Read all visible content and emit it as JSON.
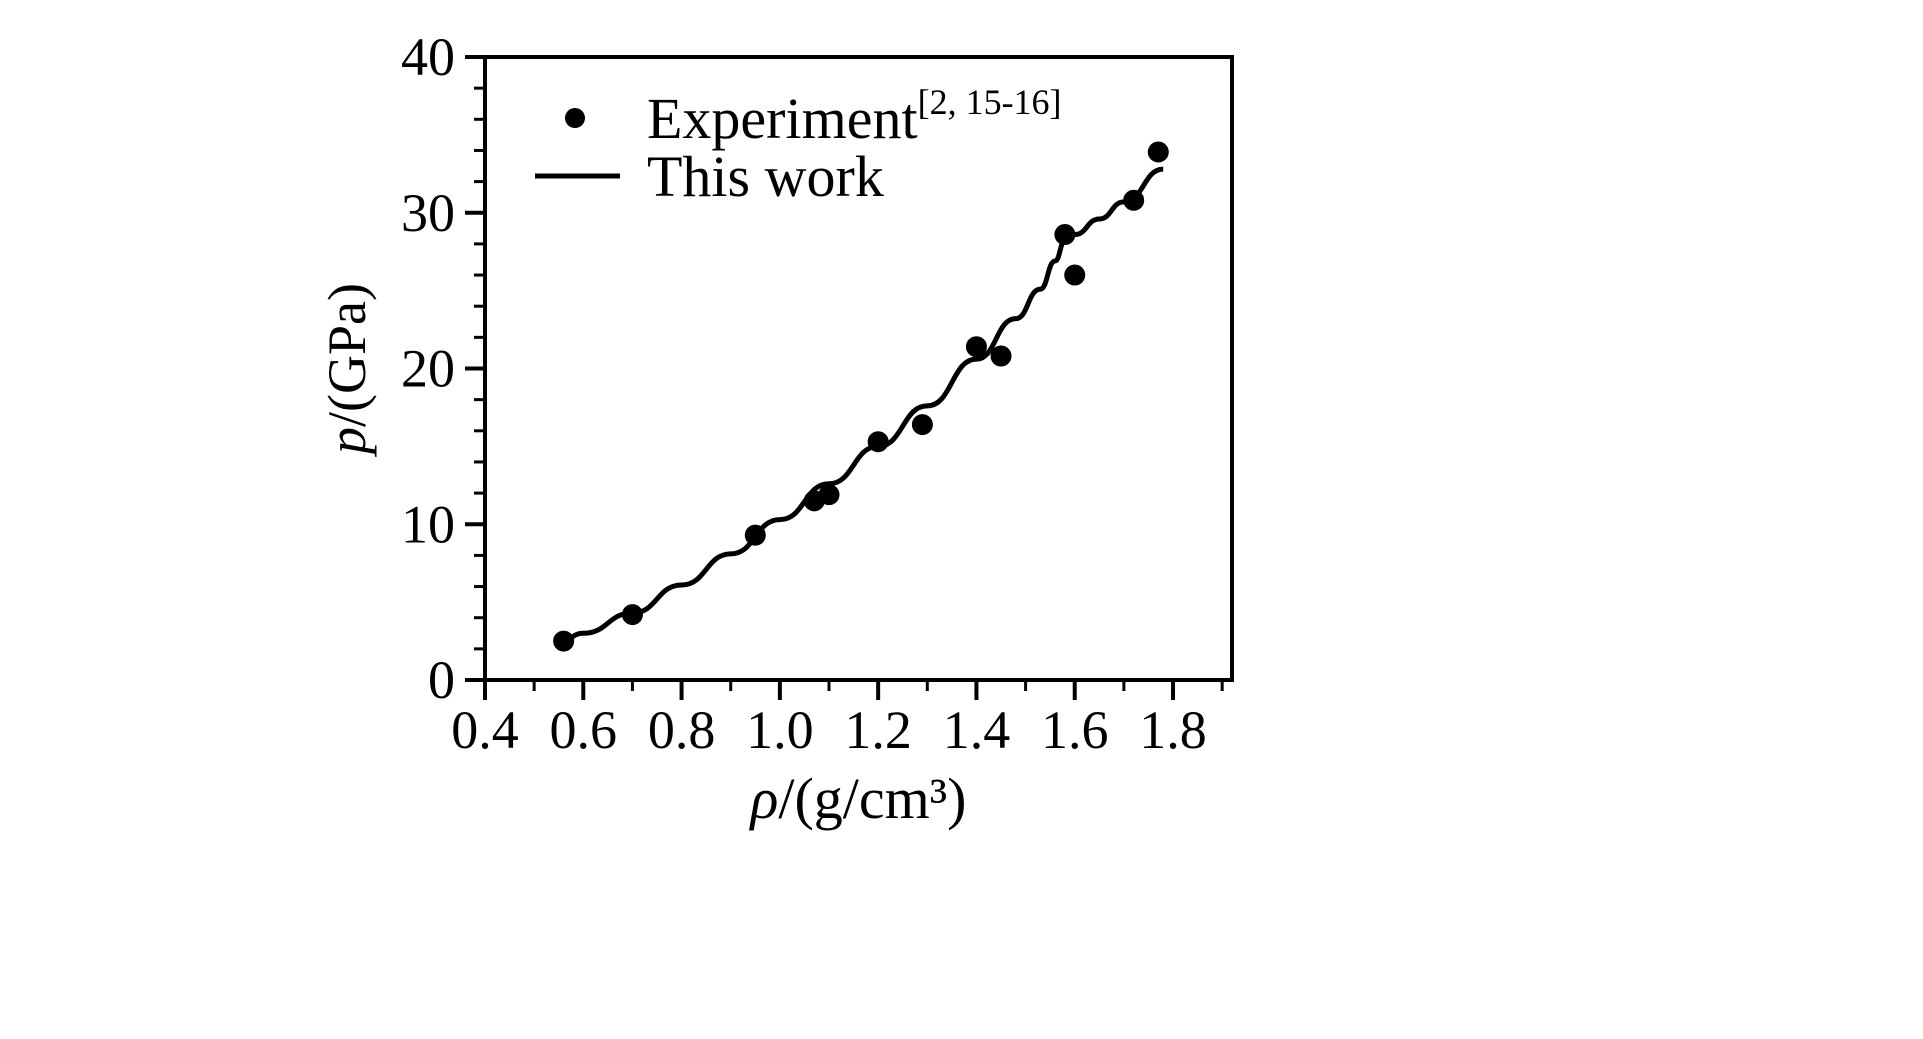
{
  "figure": {
    "background": "#ffffff",
    "foreground": "#000000"
  },
  "chart_data": {
    "type": "scatter",
    "title": "",
    "xlabel_symbol": "ρ",
    "xlabel_rest": "/(g/cm³)",
    "ylabel_symbol": "p",
    "ylabel_rest": "/(GPa)",
    "xlim": [
      0.4,
      1.92
    ],
    "ylim": [
      0,
      40
    ],
    "x_major_ticks": [
      0.4,
      0.6,
      0.8,
      1.0,
      1.2,
      1.4,
      1.6,
      1.8
    ],
    "x_tick_labels": [
      "0.4",
      "0.6",
      "0.8",
      "1.0",
      "1.2",
      "1.4",
      "1.6",
      "1.8"
    ],
    "x_minor_step": 0.1,
    "y_major_ticks": [
      0,
      10,
      20,
      30,
      40
    ],
    "y_tick_labels": [
      "0",
      "10",
      "20",
      "30",
      "40"
    ],
    "y_minor_step": 2,
    "grid": false,
    "legend_position": "upper-left-inside",
    "series": [
      {
        "name": "experiment",
        "label": "Experiment",
        "label_superscript": "[2, 15-16]",
        "type": "scatter",
        "marker": "filled-circle",
        "color": "#000000",
        "points": [
          [
            0.56,
            2.5
          ],
          [
            0.7,
            4.2
          ],
          [
            0.95,
            9.3
          ],
          [
            1.07,
            11.5
          ],
          [
            1.1,
            11.9
          ],
          [
            1.2,
            15.3
          ],
          [
            1.29,
            16.4
          ],
          [
            1.4,
            21.4
          ],
          [
            1.45,
            20.8
          ],
          [
            1.58,
            28.6
          ],
          [
            1.6,
            26.0
          ],
          [
            1.72,
            30.8
          ],
          [
            1.77,
            33.9
          ]
        ]
      },
      {
        "name": "this-work",
        "label": "This work",
        "label_superscript": "",
        "type": "line",
        "color": "#000000",
        "points": [
          [
            0.55,
            2.4
          ],
          [
            0.6,
            3.0
          ],
          [
            0.7,
            4.3
          ],
          [
            0.8,
            6.1
          ],
          [
            0.9,
            8.1
          ],
          [
            1.0,
            10.3
          ],
          [
            1.1,
            12.6
          ],
          [
            1.2,
            15.0
          ],
          [
            1.3,
            17.6
          ],
          [
            1.4,
            20.6
          ],
          [
            1.48,
            23.2
          ],
          [
            1.53,
            25.1
          ],
          [
            1.56,
            26.9
          ],
          [
            1.58,
            28.2
          ],
          [
            1.6,
            28.6
          ],
          [
            1.65,
            29.6
          ],
          [
            1.7,
            30.7
          ],
          [
            1.78,
            32.8
          ]
        ]
      }
    ]
  }
}
